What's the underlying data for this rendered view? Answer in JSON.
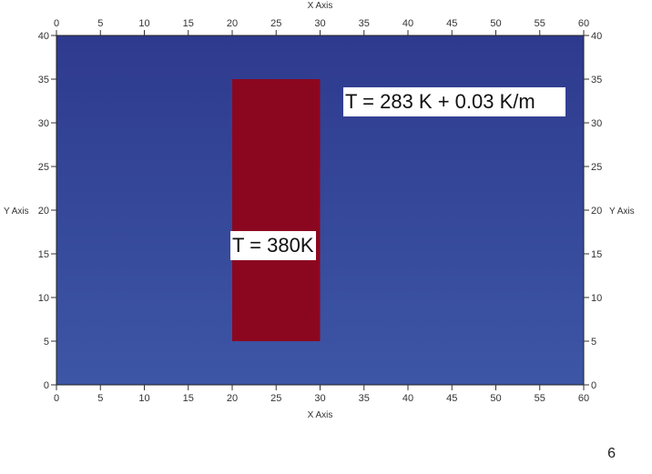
{
  "figure": {
    "x_axis_label": "X Axis",
    "y_axis_label": "Y Axis",
    "x_range": [
      0,
      60
    ],
    "y_range": [
      0,
      40
    ],
    "x_ticks": [
      0,
      5,
      10,
      15,
      20,
      25,
      30,
      35,
      40,
      45,
      50,
      55,
      60
    ],
    "y_ticks": [
      0,
      5,
      10,
      15,
      20,
      25,
      30,
      35,
      40
    ],
    "background_field": {
      "color_top": "#2e3a8e",
      "color_bottom": "#3d56a5"
    },
    "hot_block": {
      "x": [
        20,
        30
      ],
      "y": [
        5,
        35
      ],
      "color": "#8b0720"
    },
    "annotations": {
      "background_temperature": "T = 283 K + 0.03 K/m",
      "block_temperature": "T = 380K"
    }
  },
  "page_number": "6"
}
